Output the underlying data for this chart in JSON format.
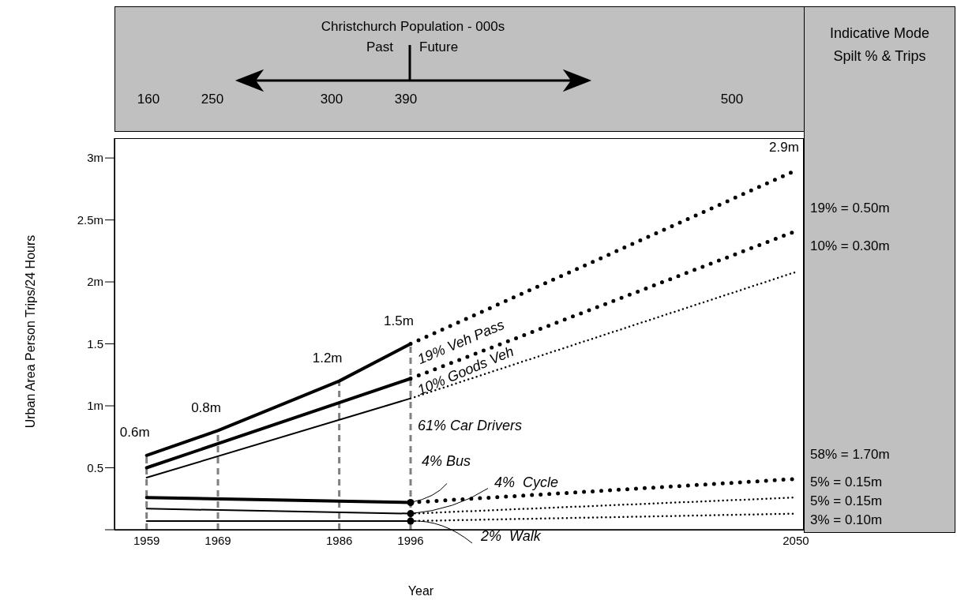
{
  "chart_data": {
    "type": "line",
    "xlabel": "Year",
    "ylabel": "Urban Area Person Trips/24 Hours",
    "xlim": [
      1954.5,
      2051
    ],
    "xticks": [
      1959,
      1969,
      1986,
      1996,
      2050
    ],
    "ylim": [
      0,
      3.16
    ],
    "yticks": [
      {
        "value": 0,
        "label": null
      },
      {
        "value": 0.5,
        "label": "0.5"
      },
      {
        "value": 1,
        "label": "1m"
      },
      {
        "value": 1.5,
        "label": "1.5"
      },
      {
        "value": 2,
        "label": "2m"
      },
      {
        "value": 2.5,
        "label": "2.5m"
      },
      {
        "value": 3,
        "label": "3m"
      }
    ],
    "series": [
      {
        "name": "19% Veh Pass",
        "line_style": "solid",
        "color": "#000000",
        "x": [
          1959,
          1969,
          1986,
          1996
        ],
        "values": [
          0.6,
          0.8,
          1.2,
          1.5
        ],
        "value_labels": [
          "0.6m",
          "0.8m",
          "1.2m",
          "1.5m"
        ]
      },
      {
        "name": "10% Goods Veh",
        "line_style": "solid",
        "color": "#000000",
        "x": [
          1959,
          1996
        ],
        "values": [
          0.5,
          1.22
        ]
      },
      {
        "name": "61% Car Drivers",
        "line_style": "solid",
        "color": "#000000",
        "x": [
          1959,
          1996
        ],
        "values": [
          0.42,
          1.06
        ]
      },
      {
        "name": "4% Bus",
        "line_style": "solid",
        "color": "#000000",
        "x": [
          1959,
          1996
        ],
        "values": [
          0.26,
          0.22
        ]
      },
      {
        "name": "4%  Cycle",
        "line_style": "solid",
        "color": "#000000",
        "x": [
          1959,
          1996
        ],
        "values": [
          0.17,
          0.13
        ]
      },
      {
        "name": "2%  Walk",
        "line_style": "solid",
        "color": "#000000",
        "x": [
          1959,
          1996
        ],
        "values": [
          0.07,
          0.07
        ]
      },
      {
        "line_style": "dotted",
        "color": "#000000",
        "x": [
          1996,
          2050
        ],
        "values": [
          1.5,
          2.9
        ],
        "value_labels": [
          null,
          "2.9m"
        ]
      },
      {
        "line_style": "dotted",
        "color": "#000000",
        "x": [
          1996,
          2050
        ],
        "values": [
          1.22,
          2.41
        ]
      },
      {
        "line_style": "dotted",
        "color": "#000000",
        "x": [
          1996,
          2050
        ],
        "values": [
          1.06,
          2.08
        ]
      },
      {
        "line_style": "dotted",
        "color": "#000000",
        "x": [
          1996,
          2050
        ],
        "values": [
          0.22,
          0.41
        ]
      },
      {
        "line_style": "dotted",
        "color": "#000000",
        "x": [
          1996,
          2050
        ],
        "values": [
          0.13,
          0.26
        ]
      },
      {
        "line_style": "dotted",
        "color": "#000000",
        "x": [
          1996,
          2050
        ],
        "values": [
          0.07,
          0.13
        ]
      },
      {
        "type": "scatter",
        "marker": "circle",
        "color": "#000000",
        "x": [
          1996,
          1996,
          1996
        ],
        "values": [
          0.22,
          0.13,
          0.07
        ]
      }
    ],
    "ref_lines": [
      {
        "axis": "x",
        "value": 1959,
        "color": "#808080",
        "line_style": "dashed"
      },
      {
        "axis": "x",
        "value": 1969,
        "color": "#808080",
        "line_style": "dashed"
      },
      {
        "axis": "x",
        "value": 1986,
        "color": "#808080",
        "line_style": "dashed"
      },
      {
        "axis": "x",
        "value": 1996,
        "color": "#808080",
        "line_style": "dashed"
      }
    ],
    "annotations": [
      "Christchurch Population - 000s",
      "Past",
      "Future",
      "160",
      "250",
      "300",
      "390",
      "500",
      "Indicative Mode Spilt % & Trips",
      "19% = 0.50m",
      "10% = 0.30m",
      "58% = 1.70m",
      "5% = 0.15m",
      "5% = 0.15m",
      "3% = 0.10m"
    ]
  }
}
